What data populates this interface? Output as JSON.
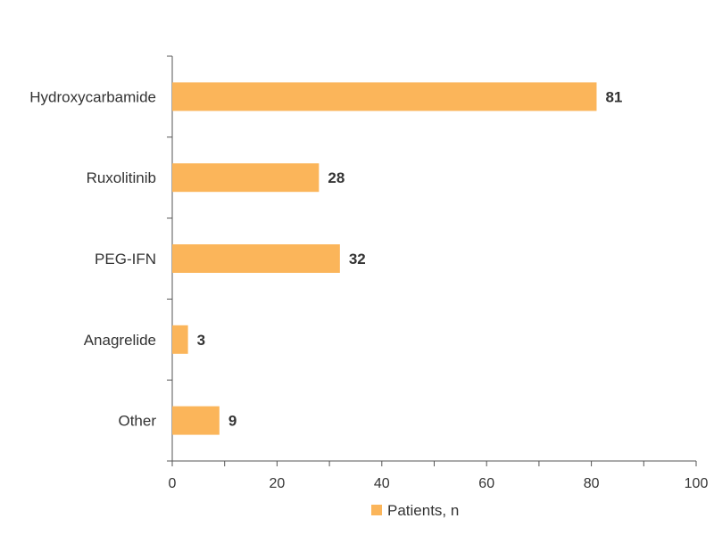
{
  "chart_data": {
    "type": "bar",
    "orientation": "horizontal",
    "categories": [
      "Hydroxycarbamide",
      "Ruxolitinib",
      "PEG-IFN",
      "Anagrelide",
      "Other"
    ],
    "series": [
      {
        "name": "Patients, n",
        "values": [
          81,
          28,
          32,
          3,
          9
        ]
      }
    ],
    "xlim": [
      0,
      100
    ],
    "xticks": [
      0,
      20,
      40,
      60,
      80,
      100
    ],
    "data_labels": [
      "81",
      "28",
      "32",
      "3",
      "9"
    ],
    "legend_position": "bottom",
    "grid": false,
    "bar_color": "#FBB55A"
  }
}
